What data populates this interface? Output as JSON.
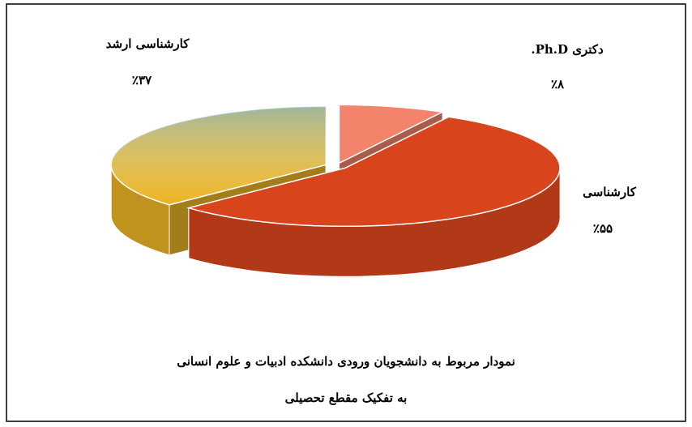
{
  "chart_data": {
    "type": "pie3d",
    "title": "نمودار مربوط به دانشجویان ورودی دانشکده ادبیات و علوم انسانی",
    "subtitle": "به تفکیک مقطع تحصیلی",
    "categories": [
      "کارشناسی ارشد",
      "دکتری Ph.D.",
      "کارشناسی"
    ],
    "values": [
      37,
      8,
      55
    ],
    "value_labels": [
      "٪۳۷",
      "٪۸",
      "٪۵۵"
    ],
    "colors": [
      "#e9b323",
      "#f3836a",
      "#d8451c"
    ]
  }
}
